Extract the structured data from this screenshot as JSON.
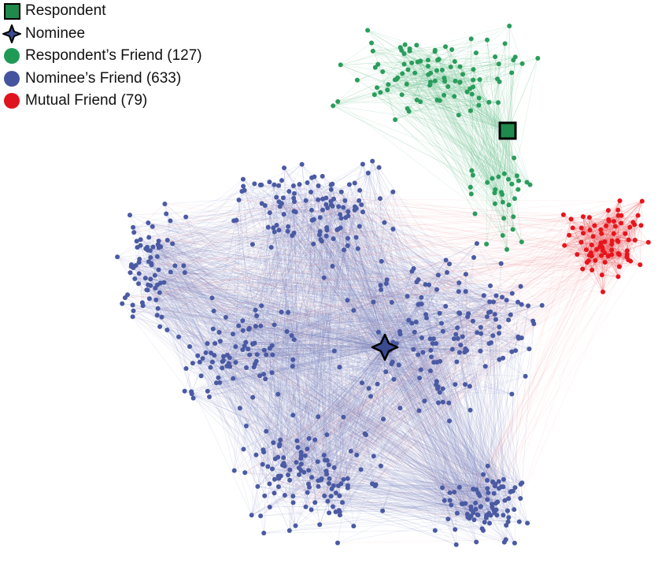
{
  "legend": [
    {
      "label": "Respondent",
      "shape": "square",
      "color": "#1f8a4c"
    },
    {
      "label": "Nominee",
      "shape": "star",
      "color": "#3a4b8f"
    },
    {
      "label": "Respondent’s Friend (127)",
      "shape": "circle",
      "color": "#1f9a56"
    },
    {
      "label": "Nominee’s Friend (633)",
      "shape": "circle",
      "color": "#44549e"
    },
    {
      "label": "Mutual Friend (79)",
      "shape": "circle",
      "color": "#e0141e"
    }
  ],
  "network": {
    "respondent_friends": 127,
    "nominee_friends": 633,
    "mutual_friends": 79,
    "colors": {
      "respondent_friend": "#2a9d5c",
      "nominee_friend": "#4a5aa3",
      "mutual_friend": "#e8141c",
      "respondent_marker": "#1f8a4c",
      "nominee_marker": "#3a4b8f",
      "edge_nominee": "#7b86c0",
      "edge_respondent": "#6dbf8e",
      "edge_mutual": "#e8555b"
    }
  }
}
